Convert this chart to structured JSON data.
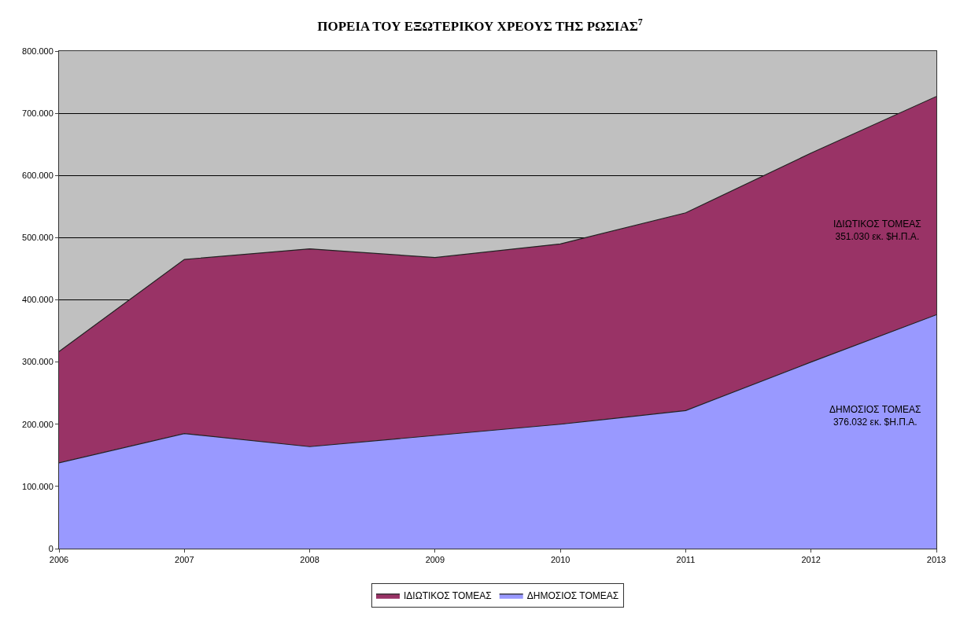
{
  "chart_data": {
    "type": "area",
    "stacked": true,
    "title": "ΠΟΡΕΙΑ ΤΟΥ ΕΞΩΤΕΡΙΚΟΥ ΧΡΕΟΥΣ ΤΗΣ ΡΩΣΙΑΣ$^{7}$",
    "x": [
      2006,
      2007,
      2008,
      2009,
      2010,
      2011,
      2012,
      2013
    ],
    "series": [
      {
        "name": "ΔΗΜΟΣΙΟΣ ΤΟΜΕΑΣ",
        "color": "#9999ff",
        "values": [
          138000,
          185000,
          164000,
          182000,
          200000,
          222000,
          300000,
          376032
        ]
      },
      {
        "name": "ΙΔΙΩΤΙΚΟΣ ΤΟΜΕΑΣ",
        "color": "#993366",
        "values": [
          179000,
          280000,
          318000,
          286000,
          290000,
          318000,
          336000,
          351030
        ]
      }
    ],
    "xlim": [
      2006,
      2013
    ],
    "xticks": [
      2006,
      2007,
      2008,
      2009,
      2010,
      2011,
      2012,
      2013
    ],
    "ylim": [
      0,
      800000
    ],
    "yticks": [
      {
        "value": 0,
        "label": "0"
      },
      {
        "value": 100000,
        "label": "100.000"
      },
      {
        "value": 200000,
        "label": "200.000"
      },
      {
        "value": 300000,
        "label": "300.000"
      },
      {
        "value": 400000,
        "label": "400.000"
      },
      {
        "value": 500000,
        "label": "500.000"
      },
      {
        "value": 600000,
        "label": "600.000"
      },
      {
        "value": 700000,
        "label": "700.000"
      },
      {
        "value": 800000,
        "label": "800.000"
      }
    ],
    "grid": "y",
    "legend": "bottom",
    "annotations": [
      "ΙΔΙΩΤΙΚΟΣ ΤΟΜΕΑΣ\n351.030 εκ. $Η.Π.Α.",
      "ΔΗΜΟΣΙΟΣ ΤΟΜΕΑΣ\n376.032 εκ. $Η.Π.Α."
    ]
  }
}
